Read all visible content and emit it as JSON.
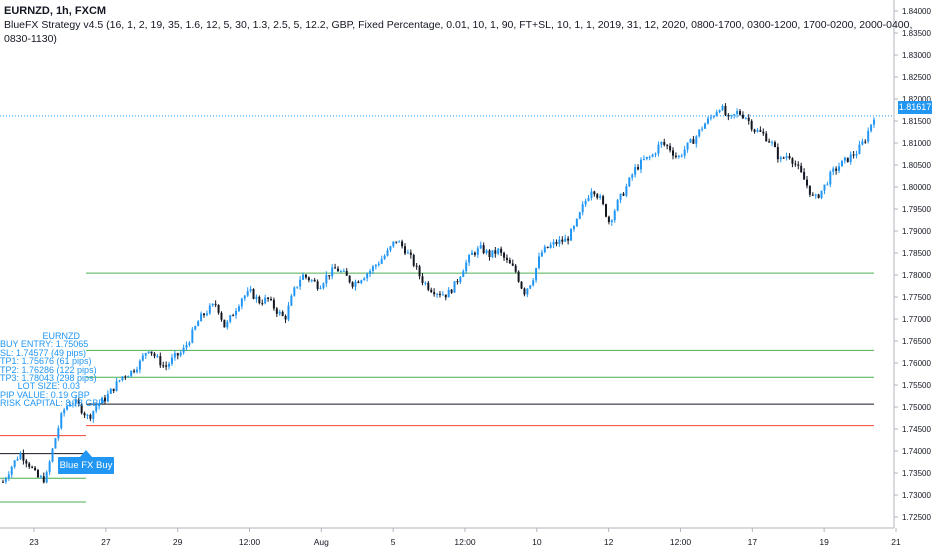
{
  "header": {
    "title": "EURNZD, 1h, FXCM",
    "params": "BlueFX Strategy v4.5 (16, 1, 2, 19, 35, 1.6, 12, 5, 30, 1.3, 2.5, 5, 12.2, GBP, Fixed Percentage, 0.01, 10, 1, 90, FT+SL, 10, 1, 1, 2019, 31, 12, 2020, 0800-1700, 0300-1200, 1700-0200, 2000-0400, 0830-1130)"
  },
  "info_panel": {
    "lines": [
      "EURNZD",
      "BUY ENTRY: 1.75065",
      "SL: 1.74577 (49 pips)",
      "TP1: 1.75676 (61 pips)",
      "TP2: 1.76286 (122 pips)",
      "TP3: 1.78043 (298 pips)",
      "LOT SIZE: 0.03",
      "PIP VALUE: 0.19 GBP",
      "RISK CAPITAL: 8.78 GBP"
    ]
  },
  "signal": {
    "label": "Blue FX Buy"
  },
  "last_price": {
    "label": "1.81617"
  },
  "colors": {
    "up_candle": "#2196f3",
    "down_candle": "#131722",
    "tp_line": "#4caf50",
    "sl_line": "#f44336",
    "entry_line": "#131722",
    "price_line": "#2196f3",
    "axis_text": "#131722"
  },
  "chart_data": {
    "type": "candlestick",
    "symbol": "EURNZD",
    "timeframe": "1h",
    "ylim": [
      1.7225,
      1.8425
    ],
    "y_ticks": [
      "1.84000",
      "1.83500",
      "1.83000",
      "1.82500",
      "1.82000",
      "1.81500",
      "1.81000",
      "1.80500",
      "1.80000",
      "1.79500",
      "1.79000",
      "1.78500",
      "1.78000",
      "1.77500",
      "1.77000",
      "1.76500",
      "1.76000",
      "1.75500",
      "1.75000",
      "1.74500",
      "1.74000",
      "1.73500",
      "1.73000",
      "1.72500"
    ],
    "x_ticks": [
      "23",
      "27",
      "29",
      "12:00",
      "Aug",
      "5",
      "12:00",
      "10",
      "12",
      "12:00",
      "17",
      "19",
      "21"
    ],
    "last_price": 1.81617,
    "levels": {
      "entry": 1.75065,
      "stop_loss": 1.74577,
      "tp1": 1.75676,
      "tp2": 1.76286,
      "tp3": 1.78043
    },
    "close_path": [
      1.733,
      1.7365,
      1.7395,
      1.7372,
      1.734,
      1.7335,
      1.742,
      1.749,
      1.7515,
      1.75,
      1.7475,
      1.7505,
      1.752,
      1.7545,
      1.757,
      1.758,
      1.76,
      1.7635,
      1.761,
      1.759,
      1.7612,
      1.7625,
      1.766,
      1.77,
      1.772,
      1.7735,
      1.768,
      1.7715,
      1.775,
      1.776,
      1.774,
      1.7745,
      1.772,
      1.77,
      1.776,
      1.78,
      1.779,
      1.7775,
      1.78,
      1.7815,
      1.78,
      1.778,
      1.7795,
      1.781,
      1.783,
      1.785,
      1.788,
      1.786,
      1.783,
      1.779,
      1.777,
      1.776,
      1.7755,
      1.778,
      1.782,
      1.785,
      1.786,
      1.7845,
      1.7855,
      1.783,
      1.781,
      1.776,
      1.779,
      1.785,
      1.7865,
      1.7875,
      1.788,
      1.791,
      1.796,
      1.8,
      1.797,
      1.792,
      1.7965,
      1.8,
      1.804,
      1.806,
      1.807,
      1.81,
      1.809,
      1.8065,
      1.809,
      1.811,
      1.814,
      1.816,
      1.8185,
      1.815,
      1.817,
      1.816,
      1.813,
      1.812,
      1.81,
      1.806,
      1.8075,
      1.8045,
      1.801,
      1.797,
      1.7995,
      1.803,
      1.805,
      1.8065,
      1.808,
      1.811,
      1.8162
    ]
  }
}
